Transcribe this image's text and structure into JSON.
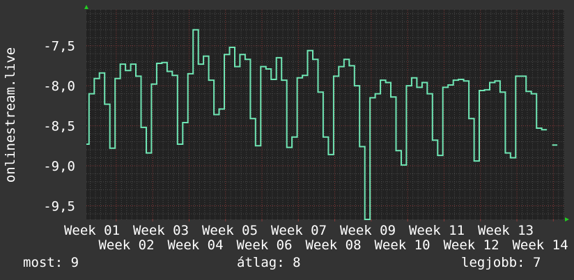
{
  "chart_data": {
    "type": "line",
    "ylabel": "onlinestream.live",
    "ylim": [
      -9.67,
      -7.05
    ],
    "y_ticks": [
      -7.5,
      -8.0,
      -8.5,
      -9.0,
      -9.5
    ],
    "y_tick_labels": [
      "-7,5",
      "-8,0",
      "-8,5",
      "-9,0",
      "-9,5"
    ],
    "x_tick_labels": [
      "Week 01",
      "Week 02",
      "Week 03",
      "Week 04",
      "Week 05",
      "Week 06",
      "Week 07",
      "Week 08",
      "Week 09",
      "Week 10",
      "Week 11",
      "Week 12",
      "Week 13",
      "Week 14"
    ],
    "xlim_weeks": [
      1.18,
      14.3
    ],
    "series_start_week": 1.11,
    "series_interval": "1 day",
    "grid": true,
    "line_color": "#6fe6b4",
    "major_grid_color": "#8a3a3a",
    "values": [
      -8.73,
      -8.1,
      -7.91,
      -7.84,
      -8.23,
      -8.78,
      -7.91,
      -7.73,
      -7.81,
      -7.73,
      -7.88,
      -8.52,
      -8.84,
      -7.98,
      -7.72,
      -7.71,
      -7.82,
      -7.87,
      -8.73,
      -8.46,
      -7.85,
      -7.3,
      -7.73,
      -7.63,
      -7.93,
      -8.36,
      -8.29,
      -7.61,
      -7.52,
      -7.76,
      -7.61,
      -7.67,
      -8.41,
      -8.75,
      -7.76,
      -7.79,
      -7.92,
      -7.65,
      -7.93,
      -8.77,
      -8.64,
      -7.9,
      -7.87,
      -7.56,
      -7.67,
      -8.08,
      -8.64,
      -8.86,
      -7.88,
      -7.76,
      -7.67,
      -7.75,
      -8.0,
      -8.76,
      -9.67,
      -8.15,
      -8.1,
      -7.93,
      -7.96,
      -8.14,
      -8.81,
      -8.99,
      -8.0,
      -7.9,
      -8.02,
      -7.96,
      -8.1,
      -8.68,
      -8.87,
      -8.02,
      -7.99,
      -7.93,
      -7.92,
      -7.94,
      -8.41,
      -8.94,
      -8.06,
      -8.05,
      -7.96,
      -7.94,
      -8.08,
      -8.84,
      -8.9,
      -7.88,
      -7.88,
      -8.07,
      -8.1,
      -8.53,
      -8.55,
      null,
      -8.74,
      null
    ]
  },
  "footer": {
    "current": "most: 9",
    "average": "átlag: 8",
    "best": "legjobb: 7"
  }
}
